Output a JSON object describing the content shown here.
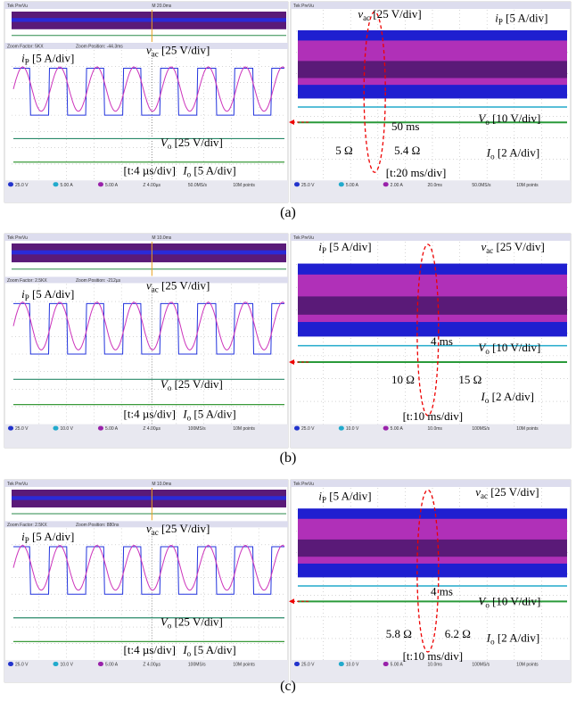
{
  "figure": {
    "rows": [
      {
        "caption": "(a)",
        "left": {
          "header": "Tek PreVu",
          "time": "M 20.0ms",
          "zoom": "Zoom Factor: 5KX",
          "zoom_position": "Zoom Position: -44.3ms",
          "readout": [
            "25.0 V",
            "5.00 A",
            "5.00 A",
            "Z 4.00µs",
            "50.0MS/s",
            "10M points"
          ],
          "labels": [
            {
              "v": "i",
              "s": "P",
              "t": " [5 A/div]"
            },
            {
              "v": "v",
              "s": "ac",
              "t": " [25 V/div]"
            },
            {
              "v": "V",
              "s": "o",
              "t": " [25 V/div]"
            },
            {
              "t": "[t:4 µs/div]"
            },
            {
              "v": "I",
              "s": "o",
              "t": " [5 A/div]"
            }
          ]
        },
        "right": {
          "header": "Tek PreVu",
          "readout": [
            "25.0 V",
            "5.00 A",
            "2.00 A",
            "20.0ms",
            "50.0MS/s",
            "10M points"
          ],
          "labels": [
            {
              "v": "v",
              "s": "ac",
              "t": " [25 V/div]"
            },
            {
              "v": "i",
              "s": "P",
              "t": " [5 A/div]"
            },
            {
              "v": "V",
              "s": "o",
              "t": " [10 V/div]"
            },
            {
              "t": "50 ms"
            },
            {
              "t": "5 Ω"
            },
            {
              "t": "5.4 Ω"
            },
            {
              "v": "I",
              "s": "o",
              "t": " [2 A/div]"
            },
            {
              "t": "[t:20 ms/div]"
            }
          ]
        }
      },
      {
        "caption": "(b)",
        "left": {
          "header": "Tek PreVu",
          "time": "M 10.0ms",
          "zoom": "Zoom Factor: 2.5KX",
          "zoom_position": "Zoom Position: -212µs",
          "readout": [
            "25.0 V",
            "10.0 V",
            "5.00 A",
            "Z 4.00µs",
            "100MS/s",
            "10M points"
          ],
          "labels": [
            {
              "v": "i",
              "s": "P",
              "t": " [5 A/div]"
            },
            {
              "v": "v",
              "s": "ac",
              "t": " [25 V/div]"
            },
            {
              "v": "V",
              "s": "o",
              "t": " [25 V/div]"
            },
            {
              "t": "[t:4 µs/div]"
            },
            {
              "v": "I",
              "s": "o",
              "t": " [5 A/div]"
            }
          ]
        },
        "right": {
          "header": "Tek PreVu",
          "readout": [
            "25.0 V",
            "10.0 V",
            "5.00 A",
            "10.0ms",
            "100MS/s",
            "10M points"
          ],
          "labels": [
            {
              "v": "i",
              "s": "P",
              "t": " [5 A/div]"
            },
            {
              "v": "v",
              "s": "ac",
              "t": " [25 V/div]"
            },
            {
              "t": "4 ms"
            },
            {
              "v": "V",
              "s": "o",
              "t": " [10 V/div]"
            },
            {
              "t": "10 Ω"
            },
            {
              "t": "15 Ω"
            },
            {
              "v": "I",
              "s": "o",
              "t": " [2 A/div]"
            },
            {
              "t": "[t:10 ms/div]"
            }
          ]
        }
      },
      {
        "caption": "(c)",
        "left": {
          "header": "Tek PreVu",
          "time": "M 10.0ms",
          "zoom": "Zoom Factor: 2.5KX",
          "zoom_position": "Zoom Position: 880ns",
          "readout": [
            "25.0 V",
            "10.0 V",
            "5.00 A",
            "Z 4.00µs",
            "100MS/s",
            "10M points"
          ],
          "labels": [
            {
              "v": "i",
              "s": "P",
              "t": " [5 A/div]"
            },
            {
              "v": "v",
              "s": "ac",
              "t": " [25 V/div]"
            },
            {
              "v": "V",
              "s": "o",
              "t": " [25 V/div]"
            },
            {
              "t": "[t:4 µs/div]"
            },
            {
              "v": "I",
              "s": "o",
              "t": " [5 A/div]"
            }
          ]
        },
        "right": {
          "header": "Tek PreVu",
          "readout": [
            "25.0 V",
            "10.0 V",
            "5.00 A",
            "10.0ms",
            "100MS/s",
            "10M points"
          ],
          "labels": [
            {
              "v": "i",
              "s": "P",
              "t": " [5 A/div]"
            },
            {
              "v": "v",
              "s": "ac",
              "t": " [25 V/div]"
            },
            {
              "t": "4 ms"
            },
            {
              "v": "V",
              "s": "o",
              "t": " [10 V/div]"
            },
            {
              "t": "5.8 Ω"
            },
            {
              "t": "6.2 Ω"
            },
            {
              "v": "I",
              "s": "o",
              "t": " [2 A/div]"
            },
            {
              "t": "[t:10 ms/div]"
            }
          ]
        }
      }
    ]
  }
}
